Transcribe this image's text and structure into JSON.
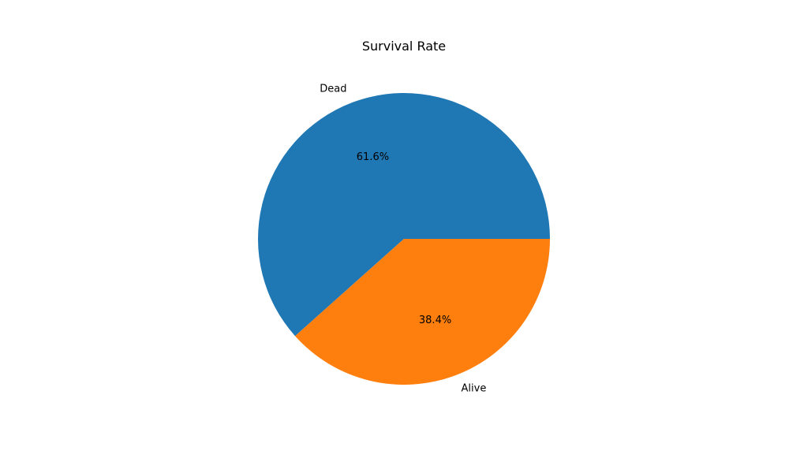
{
  "chart_data": {
    "type": "pie",
    "title": "Survival Rate",
    "categories": [
      "Dead",
      "Alive"
    ],
    "values": [
      61.6,
      38.4
    ],
    "labels": [
      "61.6%",
      "38.4%"
    ],
    "colors": [
      "#1f77b4",
      "#ff7f0e"
    ],
    "start_angle_deg": 0,
    "direction": "counterclockwise",
    "legend": "none"
  }
}
